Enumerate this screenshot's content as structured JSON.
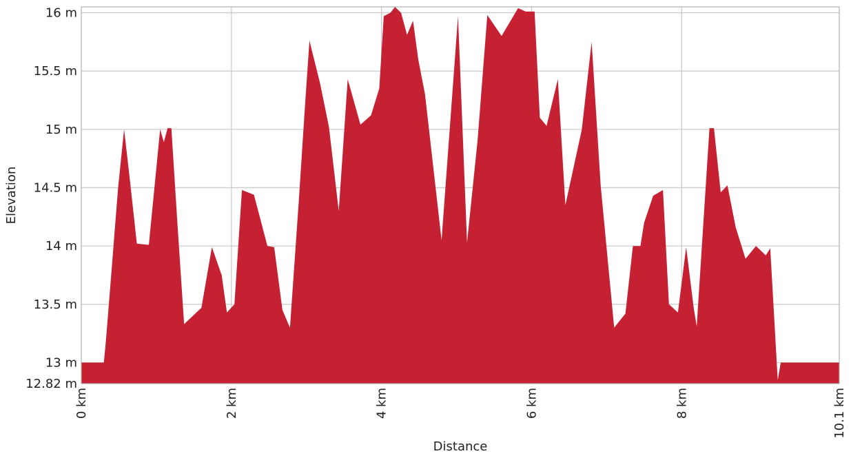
{
  "chart_data": {
    "type": "area",
    "title": "",
    "xlabel": "Distance",
    "ylabel": "Elevation",
    "x_unit": "km",
    "y_unit": "m",
    "xlim": [
      0,
      10.1
    ],
    "ylim": [
      12.82,
      16.05
    ],
    "grid": true,
    "legend": "none",
    "fill_color": "#c62033",
    "x_ticks": [
      {
        "value": 0,
        "label": "0 km"
      },
      {
        "value": 2,
        "label": "2 km"
      },
      {
        "value": 4,
        "label": "4 km"
      },
      {
        "value": 6,
        "label": "6 km"
      },
      {
        "value": 8,
        "label": "8 km"
      },
      {
        "value": 10.1,
        "label": "10.1 km"
      }
    ],
    "y_ticks": [
      {
        "value": 12.82,
        "label": "12.82 m"
      },
      {
        "value": 13,
        "label": "13 m"
      },
      {
        "value": 13.5,
        "label": "13.5 m"
      },
      {
        "value": 14,
        "label": "14 m"
      },
      {
        "value": 14.5,
        "label": "14.5 m"
      },
      {
        "value": 15,
        "label": "15 m"
      },
      {
        "value": 15.5,
        "label": "15.5 m"
      },
      {
        "value": 16,
        "label": "16 m"
      }
    ],
    "series": [
      {
        "x": [
          0,
          0.3,
          0.33,
          0.41,
          0.49,
          0.57,
          0.65,
          0.74,
          0.9,
          1.05,
          1.1,
          1.15,
          1.2,
          1.28,
          1.37,
          1.6,
          1.74,
          1.87,
          1.94,
          2.04,
          2.14,
          2.3,
          2.48,
          2.57,
          2.68,
          2.78,
          2.9,
          2.98,
          3.04,
          3.18,
          3.3,
          3.43,
          3.55,
          3.72,
          3.86,
          3.97,
          4.03,
          4.12,
          4.18,
          4.26,
          4.34,
          4.42,
          4.49,
          4.58,
          4.8,
          5.02,
          5.14,
          5.28,
          5.41,
          5.6,
          5.82,
          5.92,
          6.04,
          6.11,
          6.2,
          6.35,
          6.45,
          6.67,
          6.8,
          6.92,
          7.1,
          7.25,
          7.35,
          7.45,
          7.5,
          7.62,
          7.75,
          7.83,
          7.95,
          8.06,
          8.16,
          8.2,
          8.37,
          8.43,
          8.52,
          8.61,
          8.72,
          8.85,
          8.99,
          9.12,
          9.18,
          9.28,
          9.32,
          9.43,
          9.54,
          9.64,
          9.71,
          9.83,
          9.92,
          10.02,
          10.1
        ],
        "y": [
          13.0,
          13.0,
          13.2,
          13.85,
          14.5,
          15.0,
          14.55,
          14.02,
          14.01,
          15.0,
          14.89,
          15.01,
          15.01,
          14.2,
          13.33,
          13.47,
          13.99,
          13.75,
          13.43,
          13.5,
          14.48,
          14.44,
          14.0,
          13.99,
          13.45,
          13.3,
          14.4,
          15.2,
          15.76,
          15.4,
          15.02,
          14.3,
          15.43,
          15.04,
          15.12,
          15.35,
          15.97,
          16.0,
          16.05,
          16.0,
          15.81,
          15.93,
          15.6,
          15.3,
          14.05,
          15.97,
          14.03,
          14.9,
          15.98,
          15.8,
          16.04,
          16.01,
          16.01,
          15.1,
          15.03,
          15.43,
          14.35,
          15.0,
          15.75,
          14.52,
          13.3,
          13.42,
          14.0,
          14.0,
          14.2,
          14.43,
          14.48,
          13.5,
          13.43,
          13.99,
          13.47,
          13.31,
          15.01,
          15.01,
          14.46,
          14.52,
          14.16,
          13.89,
          14.0,
          13.92,
          13.98,
          12.85,
          13.0,
          13.0,
          13.0,
          13.0,
          13.0,
          13.0,
          13.0,
          13.0,
          13.0
        ]
      }
    ]
  }
}
